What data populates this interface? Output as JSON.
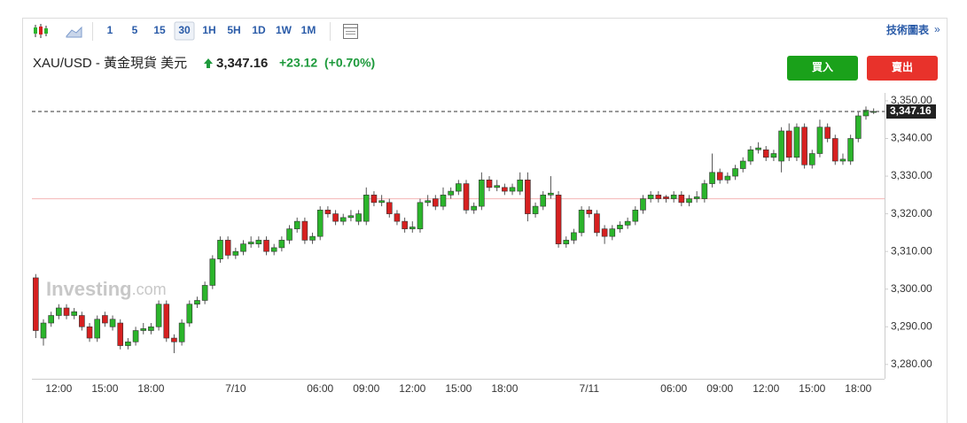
{
  "toolbar": {
    "intervals": [
      "1",
      "5",
      "15",
      "30",
      "1H",
      "5H",
      "1D",
      "1W",
      "1M"
    ],
    "active": "30",
    "link": "技術圖表",
    "link_arrow": "»"
  },
  "header": {
    "symbol": "XAU/USD - 黃金現貨 美元",
    "price": "3,347.16",
    "change": "+23.12",
    "change_pct": "(+0.70%)"
  },
  "buttons": {
    "buy": "買入",
    "sell": "賣出"
  },
  "watermark": {
    "brand": "Investing",
    ".com": ".com"
  },
  "chart_data": {
    "type": "candlestick",
    "up_color": "#2bb52b",
    "down_color": "#d62020",
    "categories": [
      null,
      null,
      null,
      "12:00",
      null,
      null,
      null,
      null,
      null,
      "15:00",
      null,
      null,
      null,
      null,
      null,
      "18:00",
      null,
      null,
      null,
      null,
      null,
      null,
      null,
      null,
      null,
      null,
      "7/10",
      null,
      null,
      null,
      null,
      null,
      null,
      null,
      null,
      null,
      null,
      "06:00",
      null,
      null,
      null,
      null,
      null,
      "09:00",
      null,
      null,
      null,
      null,
      null,
      "12:00",
      null,
      null,
      null,
      null,
      null,
      "15:00",
      null,
      null,
      null,
      null,
      null,
      "18:00",
      null,
      null,
      null,
      null,
      null,
      null,
      null,
      null,
      null,
      null,
      "7/11",
      null,
      null,
      null,
      null,
      null,
      null,
      null,
      null,
      null,
      null,
      "06:00",
      null,
      null,
      null,
      null,
      null,
      "09:00",
      null,
      null,
      null,
      null,
      null,
      "12:00",
      null,
      null,
      null,
      null,
      null,
      "15:00",
      null,
      null,
      null,
      null,
      null,
      "18:00",
      null,
      null
    ],
    "open": [
      3303,
      3287,
      3291,
      3293,
      3295,
      3293,
      3293,
      3290,
      3287,
      3293,
      3290,
      3291,
      3285,
      3286,
      3289,
      3289,
      3290,
      3296,
      3287,
      3286,
      3291,
      3296,
      3297,
      3301,
      3308,
      3313,
      3309,
      3310,
      3312,
      3312,
      3313,
      3310,
      3311,
      3313,
      3316,
      3318,
      3313,
      3314,
      3321,
      3320,
      3318,
      3319,
      3318,
      3318,
      3325,
      3323,
      3323,
      3320,
      3318,
      3316,
      3316,
      3323,
      3324,
      3322,
      3325,
      3326,
      3328,
      3321,
      3322,
      3329,
      3327,
      3327,
      3326,
      3326,
      3329,
      3320,
      3322,
      3325,
      3325,
      3312,
      3313,
      3315,
      3321,
      3320,
      3316,
      3314,
      3316,
      3317,
      3318,
      3321,
      3324,
      3325,
      3324.5,
      3324,
      3325,
      3323,
      3324,
      3324,
      3328,
      3331,
      3329,
      3330,
      3332,
      3334,
      3337,
      3337,
      3335,
      3334,
      3342,
      3335,
      3343,
      3333,
      3336,
      3343,
      3340,
      3334,
      3334,
      3340,
      3346,
      3347
    ],
    "high": [
      3304,
      3292,
      3294,
      3296,
      3296,
      3295,
      3294,
      3291,
      3293,
      3294,
      3293,
      3292,
      3287,
      3290,
      3291,
      3291,
      3297,
      3297,
      3288,
      3292,
      3297,
      3298,
      3302,
      3309,
      3314,
      3314,
      3311,
      3313,
      3314,
      3314,
      3314,
      3312,
      3314,
      3317,
      3319,
      3319,
      3315,
      3322,
      3322,
      3321,
      3320,
      3321,
      3321,
      3327,
      3326,
      3325,
      3324,
      3321,
      3319,
      3318,
      3324,
      3325,
      3325,
      3327,
      3327,
      3329,
      3329,
      3323,
      3331,
      3330,
      3329,
      3328,
      3328,
      3331,
      3331,
      3323,
      3326,
      3330,
      3326,
      3314,
      3316,
      3322,
      3322,
      3321,
      3317,
      3317,
      3318,
      3319,
      3322,
      3325,
      3326,
      3326,
      3325,
      3326,
      3326,
      3325,
      3326,
      3329,
      3336,
      3332,
      3331,
      3333,
      3335,
      3338,
      3339,
      3338,
      3337,
      3343,
      3344,
      3344,
      3344,
      3337,
      3345,
      3344,
      3341,
      3336,
      3341,
      3347,
      3348.5,
      3348
    ],
    "low": [
      3287,
      3285,
      3290,
      3292,
      3292,
      3292,
      3289,
      3286,
      3286,
      3290,
      3289,
      3284,
      3284,
      3285,
      3288,
      3288,
      3289,
      3286,
      3283,
      3285,
      3290,
      3295,
      3296,
      3300,
      3307,
      3308,
      3308,
      3309,
      3311,
      3311,
      3309,
      3309,
      3310,
      3312,
      3315,
      3312,
      3312,
      3313,
      3319,
      3317,
      3317,
      3318,
      3317,
      3317,
      3322,
      3322,
      3319,
      3317,
      3315,
      3315,
      3315,
      3322,
      3321,
      3321,
      3324,
      3325,
      3320,
      3320,
      3321,
      3326,
      3326,
      3325,
      3325,
      3325,
      3318,
      3319,
      3321,
      3324,
      3311,
      3311,
      3312,
      3314,
      3319,
      3314,
      3312,
      3313,
      3315,
      3316,
      3317,
      3320,
      3323,
      3323,
      3323,
      3323,
      3322,
      3322,
      3323,
      3323,
      3327,
      3328,
      3328,
      3329,
      3331,
      3333,
      3336,
      3334,
      3334,
      3331,
      3334,
      3334,
      3332,
      3332,
      3335,
      3339,
      3333,
      3333,
      3333,
      3339,
      3345,
      3346.5
    ],
    "close": [
      3289,
      3291,
      3293,
      3295,
      3293,
      3294,
      3290,
      3287,
      3292,
      3291,
      3292,
      3285,
      3286,
      3289,
      3289.5,
      3290,
      3296,
      3287,
      3286,
      3291,
      3296,
      3297,
      3301,
      3308,
      3313,
      3309,
      3310,
      3312,
      3312.5,
      3313,
      3310,
      3311,
      3313,
      3316,
      3318,
      3313,
      3314,
      3321,
      3320,
      3318,
      3319,
      3319.5,
      3320,
      3325,
      3323,
      3323.5,
      3320,
      3318,
      3316,
      3316.5,
      3323,
      3323.5,
      3322,
      3325,
      3326,
      3328,
      3321,
      3322,
      3329,
      3327,
      3327.5,
      3326,
      3327,
      3329,
      3320,
      3322,
      3325,
      3325.5,
      3312,
      3313,
      3315,
      3321,
      3320,
      3315,
      3314,
      3316,
      3317,
      3318,
      3321,
      3324,
      3325,
      3324,
      3324,
      3325,
      3323,
      3324,
      3324.5,
      3328,
      3331,
      3329,
      3330,
      3332,
      3334,
      3337,
      3337.5,
      3335,
      3336,
      3342,
      3335,
      3343,
      3333,
      3336,
      3343,
      3340,
      3334,
      3334.5,
      3340,
      3346,
      3347.5,
      3347.16
    ],
    "ylim": [
      3276.2,
      3352.1
    ],
    "yticks": [
      {
        "value": 3280,
        "label": "3,280.00"
      },
      {
        "value": 3290,
        "label": "3,290.00"
      },
      {
        "value": 3300,
        "label": "3,300.00"
      },
      {
        "value": 3310,
        "label": "3,310.00"
      },
      {
        "value": 3320,
        "label": "3,320.00"
      },
      {
        "value": 3330,
        "label": "3,330.00"
      },
      {
        "value": 3340,
        "label": "3,340.00"
      },
      {
        "value": 3350,
        "label": "3,350.00"
      }
    ],
    "last_price": {
      "value": 3347.16,
      "label": "3,347.16"
    },
    "reference_line": 3324
  }
}
